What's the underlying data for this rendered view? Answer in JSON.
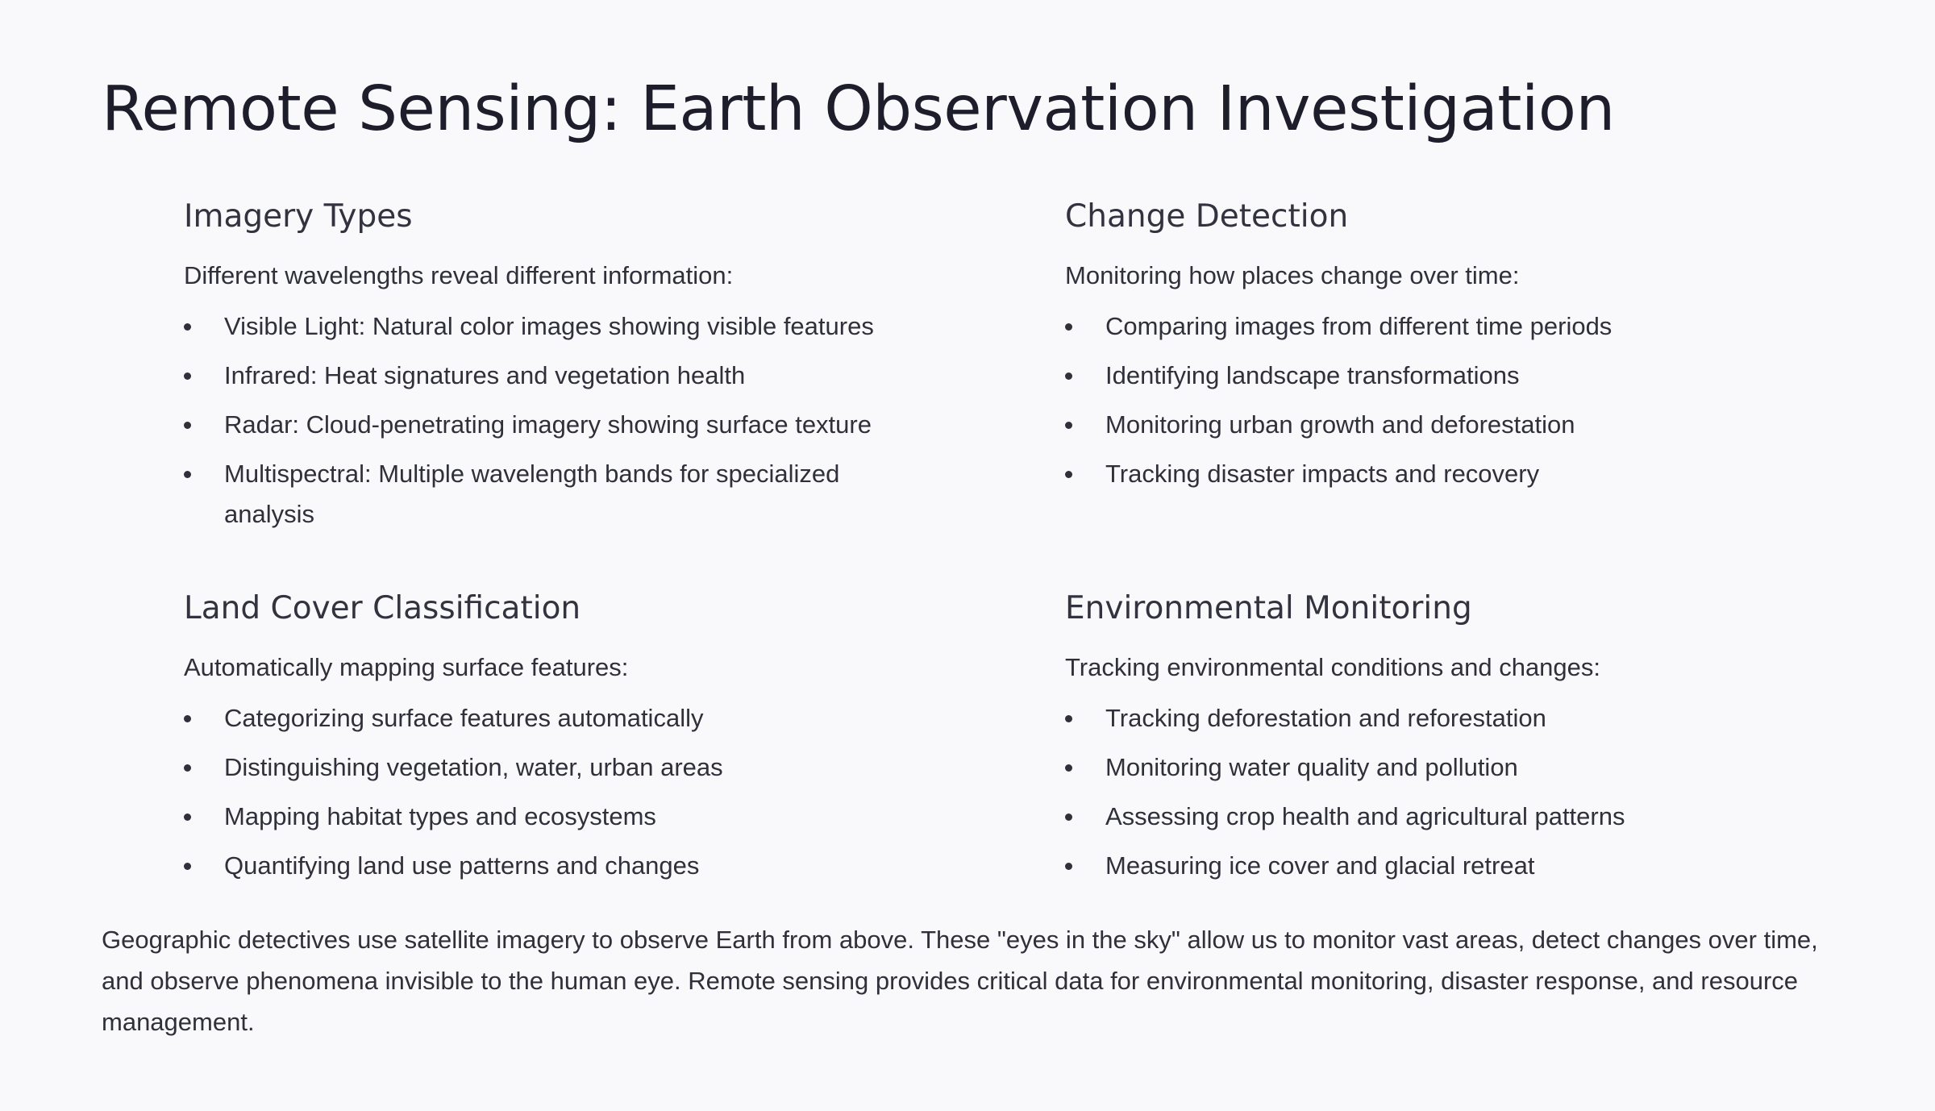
{
  "title": "Remote Sensing: Earth Observation Investigation",
  "sections": [
    {
      "heading": "Imagery Types",
      "intro": "Different wavelengths reveal different information:",
      "items": [
        "Visible Light: Natural color images showing visible features",
        "Infrared: Heat signatures and vegetation health",
        "Radar: Cloud-penetrating imagery showing surface texture",
        "Multispectral: Multiple wavelength bands for specialized analysis"
      ]
    },
    {
      "heading": "Change Detection",
      "intro": "Monitoring how places change over time:",
      "items": [
        "Comparing images from different time periods",
        "Identifying landscape transformations",
        "Monitoring urban growth and deforestation",
        "Tracking disaster impacts and recovery"
      ]
    },
    {
      "heading": "Land Cover Classification",
      "intro": "Automatically mapping surface features:",
      "items": [
        "Categorizing surface features automatically",
        "Distinguishing vegetation, water, urban areas",
        "Mapping habitat types and ecosystems",
        "Quantifying land use patterns and changes"
      ]
    },
    {
      "heading": "Environmental Monitoring",
      "intro": "Tracking environmental conditions and changes:",
      "items": [
        "Tracking deforestation and reforestation",
        "Monitoring water quality and pollution",
        "Assessing crop health and agricultural patterns",
        "Measuring ice cover and glacial retreat"
      ]
    }
  ],
  "summary": "Geographic detectives use satellite imagery to observe Earth from above. These \"eyes in the sky\" allow us to monitor vast areas, detect changes over time, and observe phenomena invisible to the human eye. Remote sensing provides critical data for environmental monitoring, disaster response, and resource management."
}
